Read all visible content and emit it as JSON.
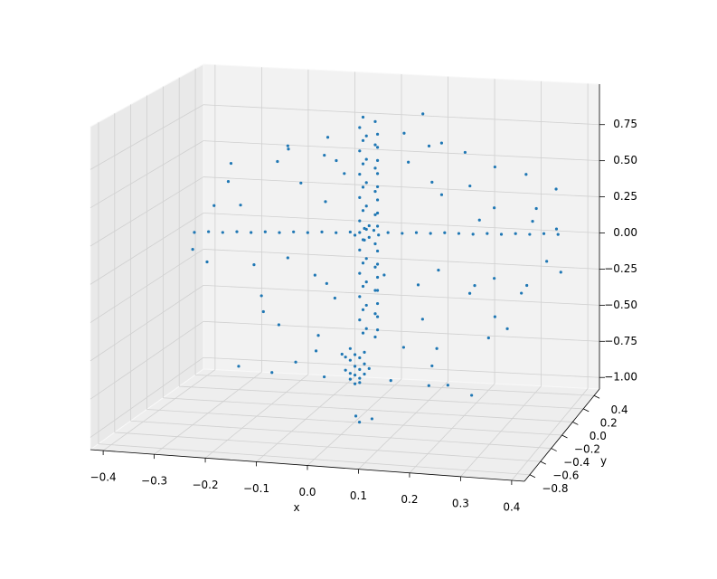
{
  "chart_data": {
    "type": "scatter3d",
    "xlabel": "x",
    "ylabel": "y",
    "xlim": [
      -0.425,
      0.425
    ],
    "ylim": [
      -0.9,
      0.5
    ],
    "zlim": [
      -1.08,
      1.03
    ],
    "xticks": [
      {
        "value": -0.4,
        "label": "−0.4"
      },
      {
        "value": -0.3,
        "label": "−0.3"
      },
      {
        "value": -0.2,
        "label": "−0.2"
      },
      {
        "value": -0.1,
        "label": "−0.1"
      },
      {
        "value": 0,
        "label": "0.0"
      },
      0.1,
      0.2,
      0.3,
      0.4
    ],
    "yticks": [
      {
        "value": -0.8,
        "label": "−0.8"
      },
      {
        "value": -0.6,
        "label": "−0.6"
      },
      {
        "value": -0.4,
        "label": "−0.4"
      },
      {
        "value": -0.2,
        "label": "−0.2"
      },
      {
        "value": 0,
        "label": "0.0"
      },
      0.2,
      0.4
    ],
    "zticks": [
      {
        "value": -1,
        "label": "−1.00"
      },
      {
        "value": -0.75,
        "label": "−0.75"
      },
      {
        "value": -0.5,
        "label": "−0.50"
      },
      {
        "value": -0.25,
        "label": "−0.25"
      },
      {
        "value": 0,
        "label": "0.00"
      },
      0.25,
      {
        "value": 0.5,
        "label": "0.50"
      },
      0.75
    ],
    "grid": true,
    "series": [
      {
        "color": "#1f77b4",
        "x": [
          -0.05,
          -0.03,
          -0.06,
          -0.04,
          -0.05,
          -0.03,
          -0.06,
          -0.04,
          -0.05,
          -0.03,
          -0.06,
          -0.04,
          -0.05,
          -0.03,
          -0.06,
          -0.04,
          -0.05,
          -0.03,
          -0.06,
          -0.04,
          -0.05,
          -0.03,
          -0.06,
          -0.04,
          -0.05,
          -0.03,
          -0.06,
          -0.04,
          -0.05,
          -0.03,
          -0.06,
          -0.04,
          -0.05,
          -0.03,
          -0.06,
          -0.04,
          -0.05,
          -0.03,
          -0.015,
          -0.015,
          -0.015,
          -0.015,
          -0.015,
          -0.015,
          -0.015,
          -0.015,
          -0.015,
          -0.015,
          -0.015,
          -0.015,
          -0.015,
          -0.015,
          -0.015,
          -0.06,
          -0.05,
          -0.04,
          -0.03,
          -0.07,
          -0.02,
          -0.05,
          -0.04,
          -0.41,
          -0.38,
          -0.35,
          -0.32,
          -0.29,
          -0.26,
          -0.23,
          -0.2,
          -0.17,
          -0.14,
          -0.11,
          -0.08,
          0.0,
          0.03,
          0.06,
          0.09,
          0.12,
          0.15,
          0.18,
          0.21,
          0.24,
          0.27,
          0.3,
          0.33,
          0.36,
          -0.3,
          -0.25,
          -0.33,
          -0.22,
          -0.18,
          -0.15,
          -0.12,
          -0.1,
          -0.28,
          -0.2,
          -0.36,
          -0.14,
          -0.08,
          0.02,
          0.05,
          0.08,
          0.12,
          0.15,
          0.18,
          0.22,
          0.25,
          0.28,
          0.32,
          0.35,
          0.38,
          0.1,
          0.2,
          0.3,
          0.14,
          0.06,
          -0.35,
          -0.3,
          -0.26,
          -0.22,
          -0.2,
          -0.17,
          -0.14,
          -0.12,
          -0.1,
          -0.28,
          -0.09,
          -0.16,
          0.02,
          0.05,
          0.08,
          0.1,
          0.13,
          0.16,
          0.19,
          0.22,
          0.25,
          0.27,
          0.3,
          0.33,
          0.12,
          0.2,
          0.04,
          0.36,
          -0.38,
          0.24,
          -0.08,
          -0.07,
          -0.06,
          -0.08,
          -0.05,
          -0.07,
          -0.06,
          -0.09,
          -0.05,
          -0.07,
          -0.06,
          -0.08,
          -0.06,
          -0.07,
          -0.05,
          -0.09,
          -0.04,
          -0.08,
          -0.3,
          -0.23,
          -0.18,
          -0.12,
          0.02,
          0.1,
          0.14,
          0.19,
          0.03,
          0.04,
          0.06
        ],
        "y": [
          0.28,
          0.32,
          0.3,
          0.26,
          0.28,
          0.32,
          0.3,
          0.26,
          0.28,
          0.32,
          0.3,
          0.26,
          0.28,
          0.32,
          0.3,
          0.26,
          0.28,
          0.32,
          0.3,
          0.26,
          0.28,
          0.32,
          0.3,
          0.26,
          0.28,
          0.32,
          0.3,
          0.26,
          0.28,
          0.32,
          0.3,
          0.26,
          0.28,
          0.32,
          0.3,
          0.26,
          0.28,
          0.32,
          0.25,
          0.25,
          0.25,
          0.25,
          0.25,
          0.25,
          0.25,
          0.25,
          0.25,
          0.25,
          0.25,
          0.25,
          0.25,
          0.25,
          0.25,
          0.3,
          0.3,
          0.3,
          0.3,
          0.3,
          0.3,
          0.3,
          0.3,
          0.3,
          0.3,
          0.3,
          0.3,
          0.3,
          0.3,
          0.3,
          0.3,
          0.3,
          0.3,
          0.3,
          0.3,
          0.3,
          0.3,
          0.3,
          0.3,
          0.3,
          0.3,
          0.3,
          0.3,
          0.3,
          0.3,
          0.3,
          0.3,
          0.3,
          0.1,
          0.4,
          0.25,
          0.35,
          0.1,
          0.4,
          0.25,
          0.35,
          0.1,
          0.4,
          0.25,
          0.35,
          0.1,
          0.4,
          0.25,
          0.35,
          0.1,
          0.4,
          0.25,
          0.35,
          0.1,
          0.4,
          0.25,
          0.35,
          0.1,
          0.4,
          0.25,
          0.35,
          0.1,
          0.4,
          0.1,
          0.4,
          0.25,
          0.35,
          0.1,
          0.4,
          0.25,
          0.35,
          0.1,
          0.4,
          0.25,
          0.35,
          0.1,
          0.4,
          0.25,
          0.35,
          0.1,
          0.4,
          0.25,
          0.35,
          0.1,
          0.4,
          0.25,
          0.35,
          0.1,
          0.4,
          0.25,
          0.35,
          0.1,
          0.4,
          0.3,
          0.3,
          0.3,
          0.3,
          0.3,
          0.3,
          0.3,
          0.3,
          0.3,
          0.3,
          0.3,
          0.3,
          0.3,
          0.3,
          0.3,
          0.3,
          0.3,
          0.3,
          0.2,
          0.2,
          0.2,
          0.2,
          0.2,
          0.2,
          0.2,
          0.2,
          -0.4,
          -0.42,
          -0.38
        ],
        "z": [
          0.8,
          0.76,
          0.72,
          0.68,
          0.64,
          0.6,
          0.56,
          0.52,
          0.48,
          0.44,
          0.4,
          0.36,
          0.32,
          0.28,
          0.24,
          0.2,
          0.16,
          0.12,
          0.08,
          0.04,
          -0.04,
          -0.08,
          -0.12,
          -0.16,
          -0.2,
          -0.24,
          -0.28,
          -0.32,
          -0.36,
          -0.4,
          -0.44,
          -0.48,
          -0.52,
          -0.56,
          -0.6,
          -0.64,
          -0.68,
          -0.72,
          0.7,
          0.61,
          0.52,
          0.43,
          0.34,
          0.25,
          0.16,
          0.07,
          -0.1,
          -0.19,
          -0.28,
          -0.37,
          -0.46,
          -0.55,
          -0.64,
          0.0,
          0.03,
          -0.03,
          0.02,
          -0.02,
          -0.01,
          -0.05,
          0.05,
          -0.06,
          -0.05,
          -0.05,
          -0.04,
          -0.04,
          -0.03,
          -0.03,
          -0.02,
          -0.02,
          -0.01,
          -0.01,
          0.0,
          0.01,
          0.01,
          0.02,
          0.02,
          0.03,
          0.03,
          0.03,
          0.04,
          0.04,
          0.05,
          0.05,
          0.06,
          0.06,
          0.5,
          0.42,
          0.32,
          0.55,
          0.62,
          0.48,
          0.66,
          0.38,
          0.22,
          0.28,
          0.15,
          0.18,
          0.56,
          0.66,
          0.52,
          0.6,
          0.45,
          0.55,
          0.38,
          0.48,
          0.3,
          0.42,
          0.25,
          0.35,
          0.18,
          0.25,
          0.15,
          0.12,
          0.72,
          0.8,
          -0.18,
          -0.3,
          -0.45,
          -0.22,
          -0.58,
          -0.35,
          -0.7,
          -0.48,
          -0.28,
          -0.62,
          -0.82,
          -0.85,
          -0.2,
          -0.38,
          -0.55,
          -0.25,
          -0.68,
          -0.42,
          -0.3,
          -0.55,
          -0.18,
          -0.4,
          -0.28,
          -0.15,
          -0.8,
          -0.72,
          -0.75,
          -0.22,
          -0.1,
          -0.65,
          -0.8,
          -0.84,
          -0.86,
          -0.88,
          -0.9,
          -0.92,
          -0.94,
          -0.95,
          -0.97,
          -0.98,
          -1.0,
          -1.01,
          -1.03,
          -1.04,
          -0.82,
          -0.86,
          -0.93,
          -0.97,
          -0.92,
          -0.95,
          -0.87,
          -0.96,
          -0.96,
          -0.98,
          -0.97,
          -1.03,
          -0.95,
          -0.98,
          -0.97
        ]
      }
    ]
  }
}
